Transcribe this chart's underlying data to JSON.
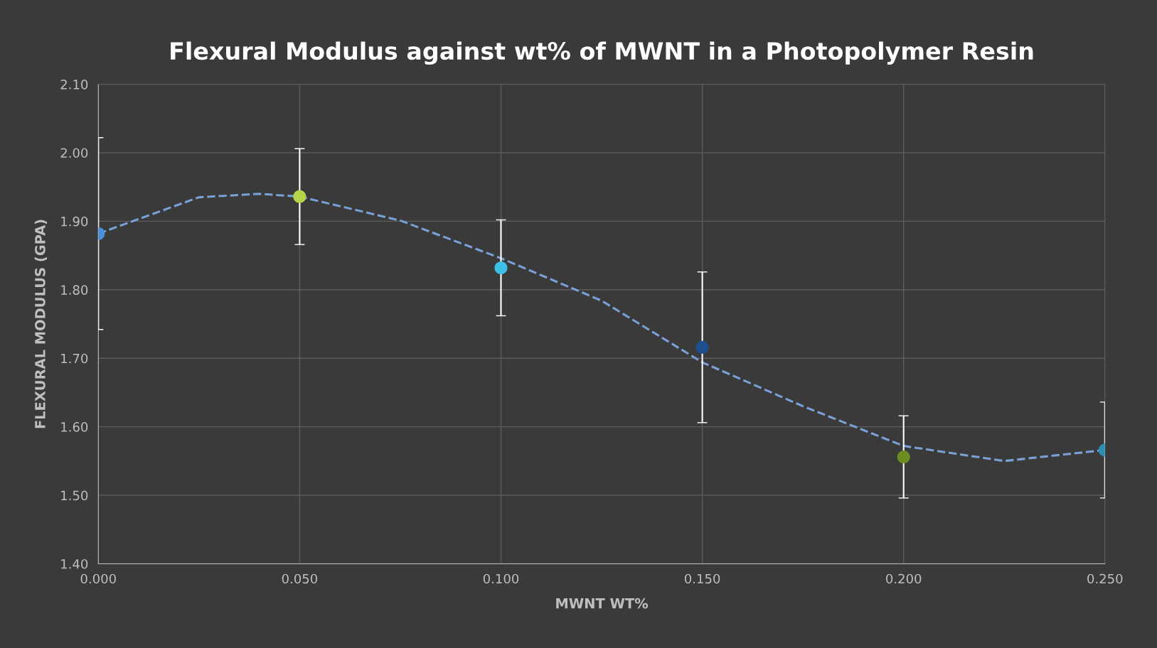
{
  "chart_data": {
    "type": "scatter",
    "title": "Flexural Modulus against wt% of MWNT in a Photopolymer Resin",
    "xlabel": "MWNT WT%",
    "ylabel": "FLEXURAL MODULUS (GPA)",
    "xlim": [
      0,
      0.25
    ],
    "ylim": [
      1.4,
      2.1
    ],
    "xticks": [
      {
        "value": 0,
        "label": "0.000"
      },
      {
        "value": 0.05,
        "label": "0.050"
      },
      {
        "value": 0.1,
        "label": "0.100"
      },
      {
        "value": 0.15,
        "label": "0.150"
      },
      {
        "value": 0.2,
        "label": "0.200"
      },
      {
        "value": 0.25,
        "label": "0.250"
      }
    ],
    "yticks": [
      {
        "value": 1.4,
        "label": "1.40"
      },
      {
        "value": 1.5,
        "label": "1.50"
      },
      {
        "value": 1.6,
        "label": "1.60"
      },
      {
        "value": 1.7,
        "label": "1.70"
      },
      {
        "value": 1.8,
        "label": "1.80"
      },
      {
        "value": 1.9,
        "label": "1.90"
      },
      {
        "value": 2.0,
        "label": "2.00"
      },
      {
        "value": 2.1,
        "label": "2.10"
      }
    ],
    "grid": true,
    "series": [
      {
        "marker": "circle",
        "x": [
          0,
          0.05,
          0.1,
          0.15,
          0.2,
          0.25
        ],
        "values": [
          1.882,
          1.936,
          1.832,
          1.716,
          1.556,
          1.566
        ],
        "colors": [
          "#4a90d9",
          "#b5d44a",
          "#3cc0e8",
          "#1f4f8f",
          "#6b8e23",
          "#2a8fb0"
        ],
        "errors": [
          0.14,
          0.07,
          0.07,
          0.11,
          0.06,
          0.07
        ]
      },
      {
        "type": "line",
        "x": [
          0,
          0.025,
          0.04,
          0.05,
          0.075,
          0.1,
          0.125,
          0.15,
          0.175,
          0.2,
          0.225,
          0.25
        ],
        "values": [
          1.882,
          1.935,
          1.94,
          1.936,
          1.901,
          1.846,
          1.784,
          1.694,
          1.63,
          1.572,
          1.55,
          1.566
        ],
        "color": "#7aa0d8",
        "line_style": "dashed"
      }
    ]
  }
}
